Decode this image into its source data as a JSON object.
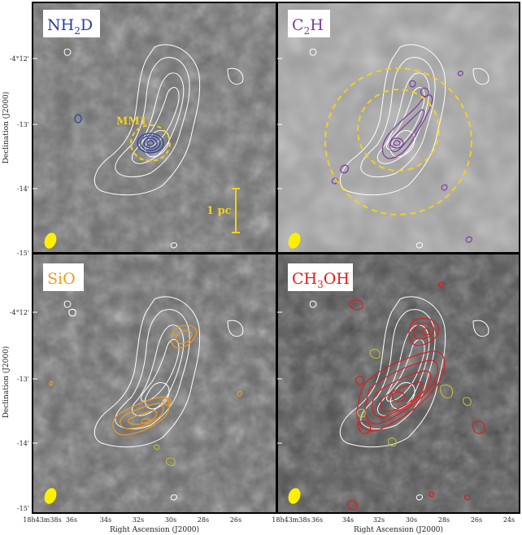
{
  "figure": {
    "panels": [
      {
        "id": "nh2d",
        "label_main": "NH",
        "sub1": "2",
        "label_tail": "D",
        "sub2": "",
        "label_tail2": "",
        "color": "#2a3fa0"
      },
      {
        "id": "c2h",
        "label_main": "C",
        "sub1": "2",
        "label_tail": "H",
        "sub2": "",
        "label_tail2": "",
        "color": "#7a3f9a"
      },
      {
        "id": "sio",
        "label_main": "SiO",
        "sub1": "",
        "label_tail": "",
        "sub2": "",
        "label_tail2": "",
        "color": "#f29a1c"
      },
      {
        "id": "ch3oh",
        "label_main": "CH",
        "sub1": "3",
        "label_tail": "OH",
        "sub2": "",
        "label_tail2": "",
        "color": "#e31a1a"
      }
    ],
    "annotations": {
      "mm1": "MM1",
      "scalebar": "1 pc"
    },
    "axes": {
      "ylabel": "Declination (J2000)",
      "xlabel": "Right Ascension (J2000)",
      "yticks": [
        "-4°12'",
        "-13'",
        "-14'",
        "-15'"
      ],
      "xticks_left": [
        "18h43m38s",
        "36s",
        "34s",
        "32s",
        "30s",
        "28s",
        "26s"
      ],
      "xticks_right": [
        "18h43m38s",
        "36s",
        "34s",
        "32s",
        "30s",
        "28s",
        "26s",
        "24s"
      ]
    },
    "colors": {
      "white_contour": "#ffffff",
      "beam": "#fff000",
      "dashed_circle": "#f2d21a",
      "yellow_contour": "#c9c22a"
    }
  }
}
